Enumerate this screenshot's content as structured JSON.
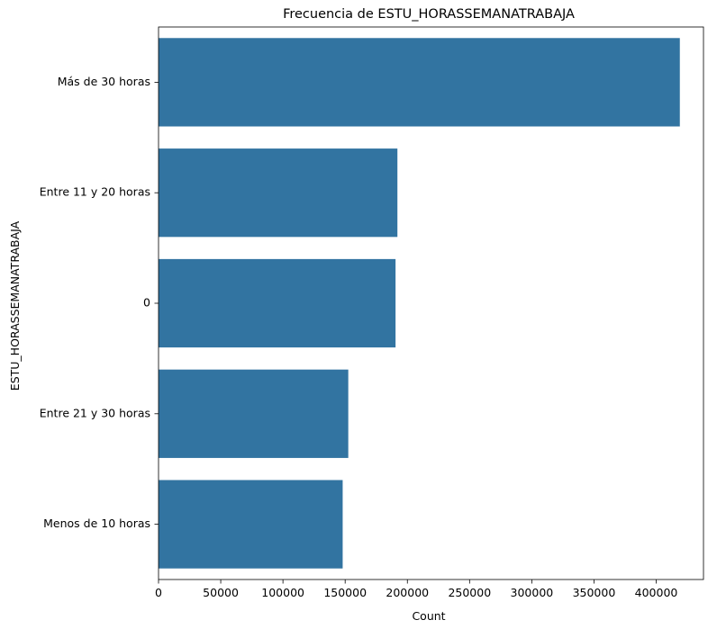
{
  "chart_data": {
    "type": "bar",
    "orientation": "horizontal",
    "title": "Frecuencia de ESTU_HORASSEMANATRABAJA",
    "xlabel": "Count",
    "ylabel": "ESTU_HORASSEMANATRABAJA",
    "categories": [
      "Más de 30 horas",
      "Entre 11 y 20 horas",
      "0",
      "Entre 21 y 30 horas",
      "Menos de 10 horas"
    ],
    "values": [
      419000,
      192000,
      190500,
      152500,
      148000
    ],
    "xlim": [
      0,
      438000
    ],
    "x_ticks": [
      0,
      50000,
      100000,
      150000,
      200000,
      250000,
      300000,
      350000,
      400000
    ],
    "bar_color": "#3274a1",
    "grid": false,
    "legend": "none"
  }
}
